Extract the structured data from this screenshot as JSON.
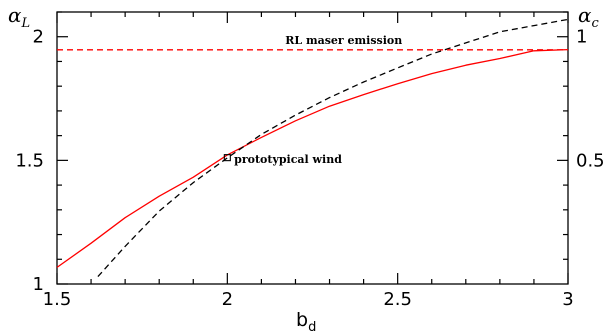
{
  "chart_data": {
    "type": "line",
    "x_axis": {
      "label_main": "b",
      "label_sub": "d",
      "range": [
        1.5,
        3.0
      ],
      "ticks": [
        1.5,
        2,
        2.5,
        3
      ],
      "tick_labels": [
        "1.5",
        "2",
        "2.5",
        "3"
      ]
    },
    "y_axis_left": {
      "label_main": "α",
      "label_sub": "L",
      "range": [
        1.0,
        2.1
      ],
      "ticks": [
        1,
        1.5,
        2
      ],
      "tick_labels": [
        "1",
        "1.5",
        "2"
      ]
    },
    "y_axis_right": {
      "label_main": "α",
      "label_sub": "c",
      "range": [
        0.0,
        1.1
      ],
      "ticks": [
        0.5,
        1
      ],
      "tick_labels": [
        "0.5",
        "1"
      ]
    },
    "series": [
      {
        "axis": "left",
        "color": "#ff0000",
        "style": "solid",
        "x": [
          1.5,
          1.6,
          1.7,
          1.8,
          1.9,
          2.0,
          2.1,
          2.2,
          2.3,
          2.4,
          2.5,
          2.6,
          2.7,
          2.8,
          2.9,
          3.0
        ],
        "y": [
          1.067,
          1.165,
          1.268,
          1.355,
          1.432,
          1.522,
          1.593,
          1.66,
          1.719,
          1.766,
          1.81,
          1.851,
          1.885,
          1.912,
          1.943,
          1.948
        ]
      },
      {
        "axis": "left",
        "color": "#000000",
        "style": "dashed",
        "x": [
          1.62,
          1.7,
          1.8,
          1.9,
          2.0,
          2.1,
          2.2,
          2.3,
          2.4,
          2.5,
          2.6,
          2.7,
          2.8,
          2.9,
          3.0
        ],
        "y": [
          1.03,
          1.152,
          1.295,
          1.41,
          1.51,
          1.605,
          1.683,
          1.754,
          1.817,
          1.874,
          1.93,
          1.975,
          2.02,
          2.045,
          2.07
        ]
      },
      {
        "axis": "left",
        "color": "#ff0000",
        "style": "dashed",
        "x": [
          1.5,
          3.0
        ],
        "y": [
          1.947,
          1.947
        ]
      }
    ],
    "annotations": [
      {
        "text": "RL maser emission",
        "x": 2.17,
        "y": 1.97
      },
      {
        "text": "prototypical wind",
        "x": 2.02,
        "y": 1.49,
        "marker": "square",
        "marker_x": 2.0,
        "marker_y": 1.511
      }
    ],
    "grid": false,
    "title": ""
  }
}
